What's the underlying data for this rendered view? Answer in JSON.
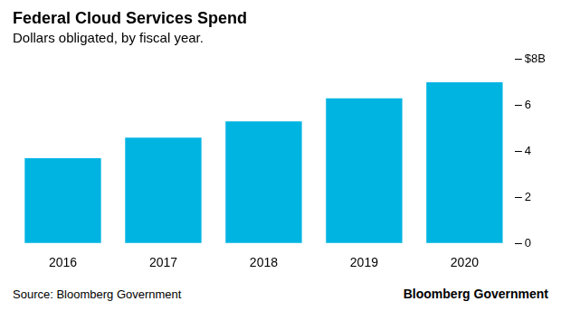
{
  "chart_data": {
    "type": "bar",
    "title": "Federal Cloud Services Spend",
    "subtitle": "Dollars obligated, by fiscal year.",
    "source": "Source: Bloomberg Government",
    "credit": "Bloomberg Government",
    "categories": [
      "2016",
      "2017",
      "2018",
      "2019",
      "2020"
    ],
    "values": [
      3.7,
      4.6,
      5.3,
      6.3,
      7.0
    ],
    "color": "#00b4e2",
    "ylim": [
      0,
      8
    ],
    "yticks": [
      0,
      2,
      4,
      6,
      {
        "value": 8,
        "label": "$8B"
      }
    ],
    "grid": false
  }
}
